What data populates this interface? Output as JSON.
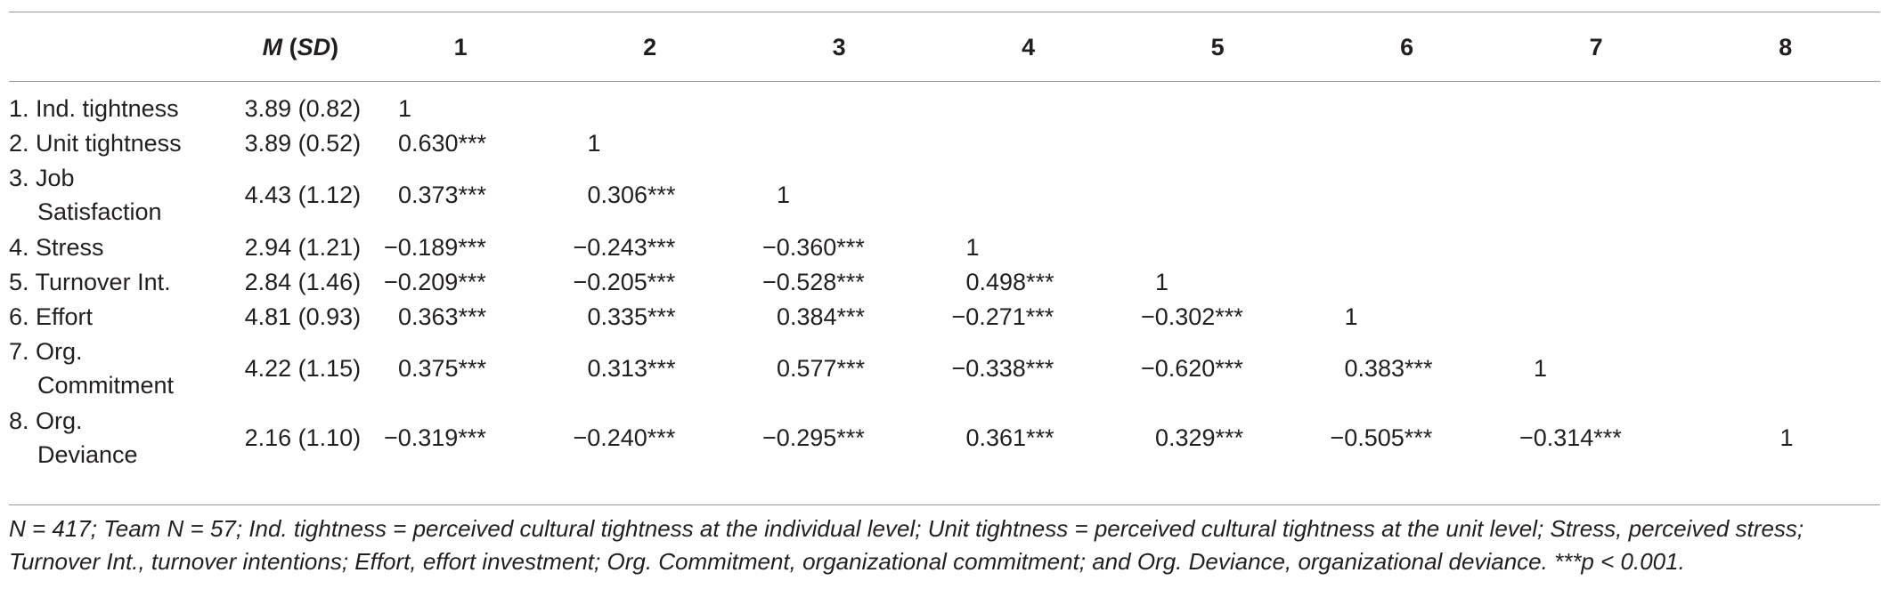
{
  "table": {
    "header": {
      "m_label": "M",
      "sd_label": "SD",
      "columns": [
        "1",
        "2",
        "3",
        "4",
        "5",
        "6",
        "7",
        "8"
      ]
    },
    "rows": [
      {
        "label_line1": "1. Ind. tightness",
        "label_line2": "",
        "msd": "3.89 (0.82)",
        "values": [
          "1",
          "",
          "",
          "",
          "",
          "",
          "",
          ""
        ]
      },
      {
        "label_line1": "2. Unit tightness",
        "label_line2": "",
        "msd": "3.89 (0.52)",
        "values": [
          "0.630***",
          "1",
          "",
          "",
          "",
          "",
          "",
          ""
        ]
      },
      {
        "label_line1": "3. Job",
        "label_line2": "Satisfaction",
        "msd": "4.43 (1.12)",
        "values": [
          "0.373***",
          "0.306***",
          "1",
          "",
          "",
          "",
          "",
          ""
        ]
      },
      {
        "label_line1": "4. Stress",
        "label_line2": "",
        "msd": "2.94 (1.21)",
        "values": [
          "−0.189***",
          "−0.243***",
          "−0.360***",
          "1",
          "",
          "",
          "",
          ""
        ]
      },
      {
        "label_line1": "5. Turnover Int.",
        "label_line2": "",
        "msd": "2.84 (1.46)",
        "values": [
          "−0.209***",
          "−0.205***",
          "−0.528***",
          "0.498***",
          "1",
          "",
          "",
          ""
        ]
      },
      {
        "label_line1": "6. Effort",
        "label_line2": "",
        "msd": "4.81 (0.93)",
        "values": [
          "0.363***",
          "0.335***",
          "0.384***",
          "−0.271***",
          "−0.302***",
          "1",
          "",
          ""
        ]
      },
      {
        "label_line1": "7. Org.",
        "label_line2": "Commitment",
        "msd": "4.22 (1.15)",
        "values": [
          "0.375***",
          "0.313***",
          "0.577***",
          "−0.338***",
          "−0.620***",
          "0.383***",
          "1",
          ""
        ]
      },
      {
        "label_line1": "8. Org.",
        "label_line2": "Deviance",
        "msd": "2.16 (1.10)",
        "values": [
          "−0.319***",
          "−0.240***",
          "−0.295***",
          "0.361***",
          "0.329***",
          "−0.505***",
          "−0.314***",
          "1"
        ]
      }
    ]
  },
  "note": {
    "line1": "N = 417; Team N = 57; Ind. tightness = perceived cultural tightness at the individual level; Unit tightness = perceived cultural tightness at the unit level; Stress, perceived stress;",
    "line2": "Turnover Int., turnover intentions; Effort, effort investment; Org. Commitment, organizational commitment; and Org. Deviance, organizational deviance. ***p < 0.001."
  }
}
